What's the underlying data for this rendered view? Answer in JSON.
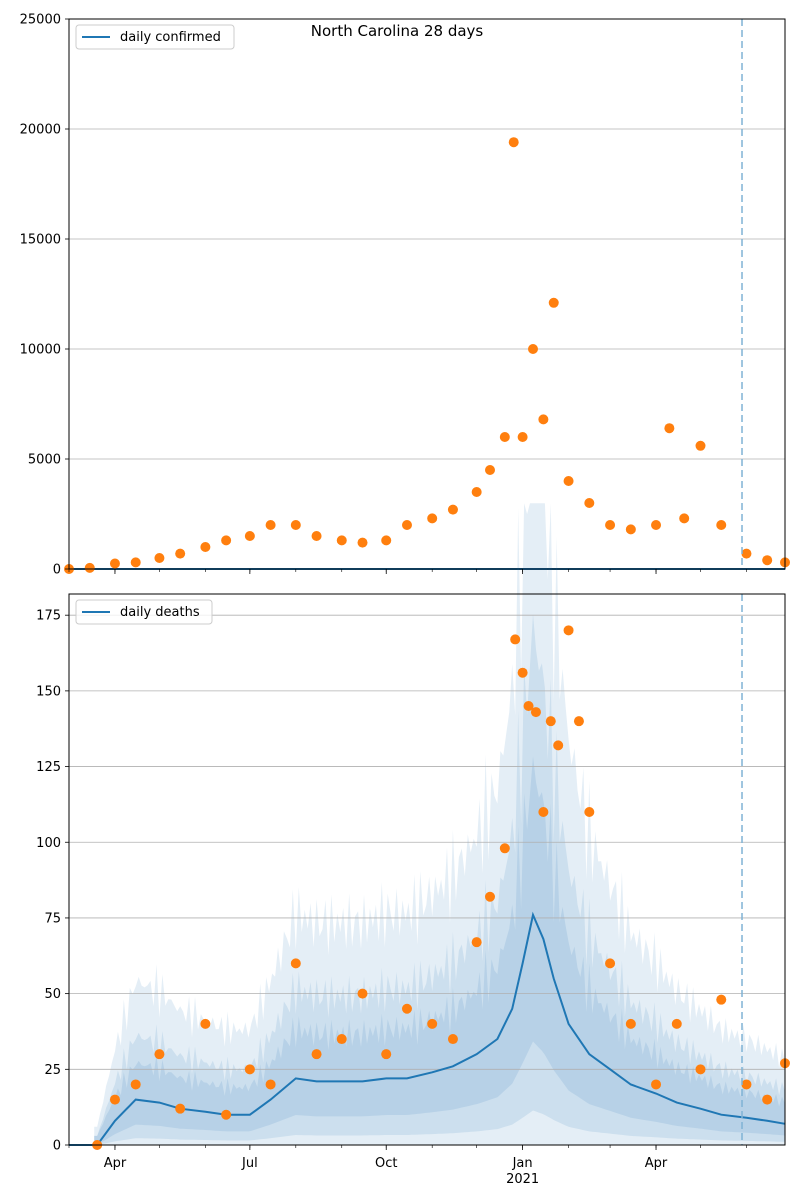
{
  "chart_data": [
    {
      "type": "scatter",
      "title": "North Carolina 28 days",
      "legend": {
        "entries": [
          "daily confirmed"
        ],
        "placement": "top-left"
      },
      "grid": "y",
      "ylim": [
        0,
        25000
      ],
      "yticks": [
        0,
        5000,
        10000,
        15000,
        20000,
        25000
      ],
      "xlim": [
        "2020-03-01",
        "2021-06-27"
      ],
      "xticks": [
        {
          "date": "2020-04-01",
          "label": "Apr"
        },
        {
          "date": "2020-07-01",
          "label": "Jul"
        },
        {
          "date": "2020-10-01",
          "label": "Oct"
        },
        {
          "date": "2021-01-01",
          "label": "Jan",
          "sublabel": "2021"
        },
        {
          "date": "2021-04-01",
          "label": "Apr"
        }
      ],
      "vline_date": "2021-05-29",
      "series": [
        {
          "name": "daily confirmed",
          "kind": "line",
          "color": "#1f77b4",
          "x": [
            "2020-03-01",
            "2021-06-27"
          ],
          "y": [
            0,
            0
          ]
        },
        {
          "kind": "points",
          "color": "#ff7f0e",
          "x": [
            "2020-03-01",
            "2020-03-15",
            "2020-04-01",
            "2020-04-15",
            "2020-05-01",
            "2020-05-15",
            "2020-06-01",
            "2020-06-15",
            "2020-07-01",
            "2020-07-15",
            "2020-08-01",
            "2020-08-15",
            "2020-09-01",
            "2020-09-15",
            "2020-10-01",
            "2020-10-15",
            "2020-11-01",
            "2020-11-15",
            "2020-12-01",
            "2020-12-10",
            "2020-12-20",
            "2020-12-26",
            "2021-01-01",
            "2021-01-08",
            "2021-01-15",
            "2021-01-22",
            "2021-02-01",
            "2021-02-15",
            "2021-03-01",
            "2021-03-15",
            "2021-04-01",
            "2021-04-10",
            "2021-04-20",
            "2021-05-01",
            "2021-05-15",
            "2021-06-01",
            "2021-06-15",
            "2021-06-27"
          ],
          "y": [
            0,
            50,
            250,
            300,
            500,
            700,
            1000,
            1300,
            1500,
            2000,
            2000,
            1500,
            1300,
            1200,
            1300,
            2000,
            2300,
            2700,
            3500,
            4500,
            6000,
            19400,
            6000,
            10000,
            6800,
            12100,
            4000,
            3000,
            2000,
            1800,
            2000,
            6400,
            2300,
            5600,
            2000,
            700,
            400,
            300
          ]
        }
      ]
    },
    {
      "type": "line",
      "legend": {
        "entries": [
          "daily deaths"
        ],
        "placement": "top-left"
      },
      "grid": "y",
      "ylim": [
        0,
        182
      ],
      "yticks": [
        0,
        25,
        50,
        75,
        100,
        125,
        150,
        175
      ],
      "xlim": [
        "2020-03-01",
        "2021-06-27"
      ],
      "xticks": [
        {
          "date": "2020-04-01",
          "label": "Apr"
        },
        {
          "date": "2020-07-01",
          "label": "Jul"
        },
        {
          "date": "2020-10-01",
          "label": "Oct"
        },
        {
          "date": "2021-01-01",
          "label": "Jan",
          "sublabel": "2021"
        },
        {
          "date": "2021-04-01",
          "label": "Apr"
        }
      ],
      "vline_date": "2021-05-29",
      "series": [
        {
          "name": "daily deaths",
          "kind": "line",
          "color": "#1f77b4",
          "x": [
            "2020-03-01",
            "2020-03-20",
            "2020-04-01",
            "2020-04-15",
            "2020-05-01",
            "2020-05-15",
            "2020-06-01",
            "2020-06-15",
            "2020-07-01",
            "2020-07-15",
            "2020-08-01",
            "2020-08-15",
            "2020-09-01",
            "2020-09-15",
            "2020-10-01",
            "2020-10-15",
            "2020-11-01",
            "2020-11-15",
            "2020-12-01",
            "2020-12-15",
            "2020-12-25",
            "2021-01-01",
            "2021-01-08",
            "2021-01-15",
            "2021-01-22",
            "2021-02-01",
            "2021-02-15",
            "2021-03-01",
            "2021-03-15",
            "2021-04-01",
            "2021-04-15",
            "2021-05-01",
            "2021-05-15",
            "2021-06-01",
            "2021-06-15",
            "2021-06-27"
          ],
          "y": [
            0,
            0,
            8,
            15,
            14,
            12,
            11,
            10,
            10,
            15,
            22,
            21,
            21,
            21,
            22,
            22,
            24,
            26,
            30,
            35,
            45,
            60,
            76,
            68,
            55,
            40,
            30,
            25,
            20,
            17,
            14,
            12,
            10,
            9,
            8,
            7
          ]
        },
        {
          "kind": "points",
          "color": "#ff7f0e",
          "x": [
            "2020-03-20",
            "2020-04-01",
            "2020-04-15",
            "2020-05-01",
            "2020-05-15",
            "2020-06-01",
            "2020-06-15",
            "2020-07-01",
            "2020-07-15",
            "2020-08-01",
            "2020-08-15",
            "2020-09-01",
            "2020-09-15",
            "2020-10-01",
            "2020-10-15",
            "2020-11-01",
            "2020-11-15",
            "2020-12-01",
            "2020-12-10",
            "2020-12-20",
            "2020-12-27",
            "2021-01-01",
            "2021-01-05",
            "2021-01-10",
            "2021-01-15",
            "2021-01-20",
            "2021-01-25",
            "2021-02-01",
            "2021-02-08",
            "2021-02-15",
            "2021-03-01",
            "2021-03-15",
            "2021-04-01",
            "2021-04-15",
            "2021-05-01",
            "2021-05-15",
            "2021-06-01",
            "2021-06-15",
            "2021-06-27"
          ],
          "y": [
            0,
            15,
            20,
            30,
            12,
            40,
            10,
            25,
            20,
            60,
            30,
            35,
            50,
            30,
            45,
            40,
            35,
            67,
            82,
            98,
            167,
            156,
            145,
            143,
            110,
            140,
            132,
            170,
            140,
            110,
            60,
            40,
            20,
            40,
            25,
            48,
            20,
            15,
            27
          ]
        }
      ]
    }
  ]
}
